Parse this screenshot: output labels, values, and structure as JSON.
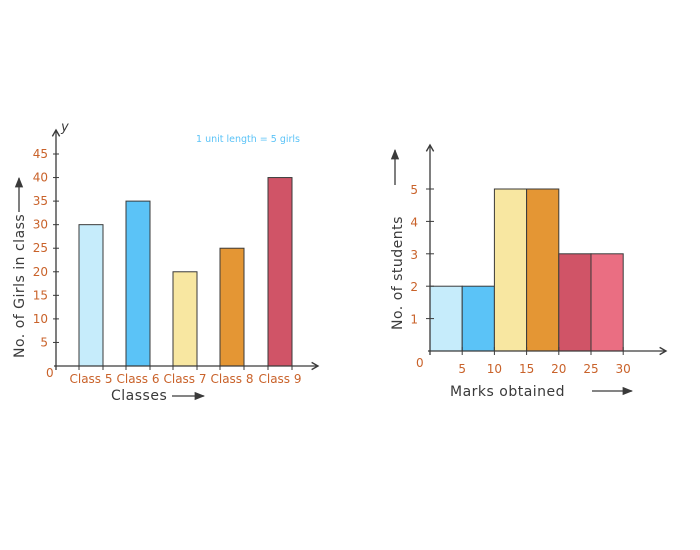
{
  "chart_data": [
    {
      "type": "bar",
      "categories": [
        "Class 5",
        "Class 6",
        "Class 7",
        "Class 8",
        "Class 9"
      ],
      "values": [
        30,
        35,
        20,
        25,
        40
      ],
      "colors": [
        "#c6ecfb",
        "#5bc3f7",
        "#f8e7a1",
        "#e49634",
        "#d05467"
      ],
      "xlabel": "Classes",
      "ylabel": "No. of Girls in class",
      "axis_letter": "y",
      "annotation": "1 unit length = 5 girls",
      "annotation_color": "#5bc3f7",
      "yticks": [
        5,
        10,
        15,
        20,
        25,
        30,
        35,
        40,
        45
      ],
      "origin_label": "0",
      "ylim": [
        0,
        45
      ],
      "grid": false
    },
    {
      "type": "histogram",
      "bins": [
        [
          0,
          5
        ],
        [
          5,
          10
        ],
        [
          10,
          15
        ],
        [
          15,
          20
        ],
        [
          20,
          25
        ],
        [
          25,
          30
        ]
      ],
      "values": [
        2,
        2,
        5,
        5,
        3,
        3
      ],
      "colors": [
        "#c6ecfb",
        "#5bc3f7",
        "#f8e7a1",
        "#e49634",
        "#d05467",
        "#ea6e82"
      ],
      "xlabel": "Marks obtained",
      "ylabel": "No. of students",
      "xticks": [
        5,
        10,
        15,
        20,
        25,
        30
      ],
      "yticks": [
        1,
        2,
        3,
        4,
        5
      ],
      "origin_label": "0",
      "ylim": [
        0,
        6
      ],
      "grid": false
    }
  ]
}
